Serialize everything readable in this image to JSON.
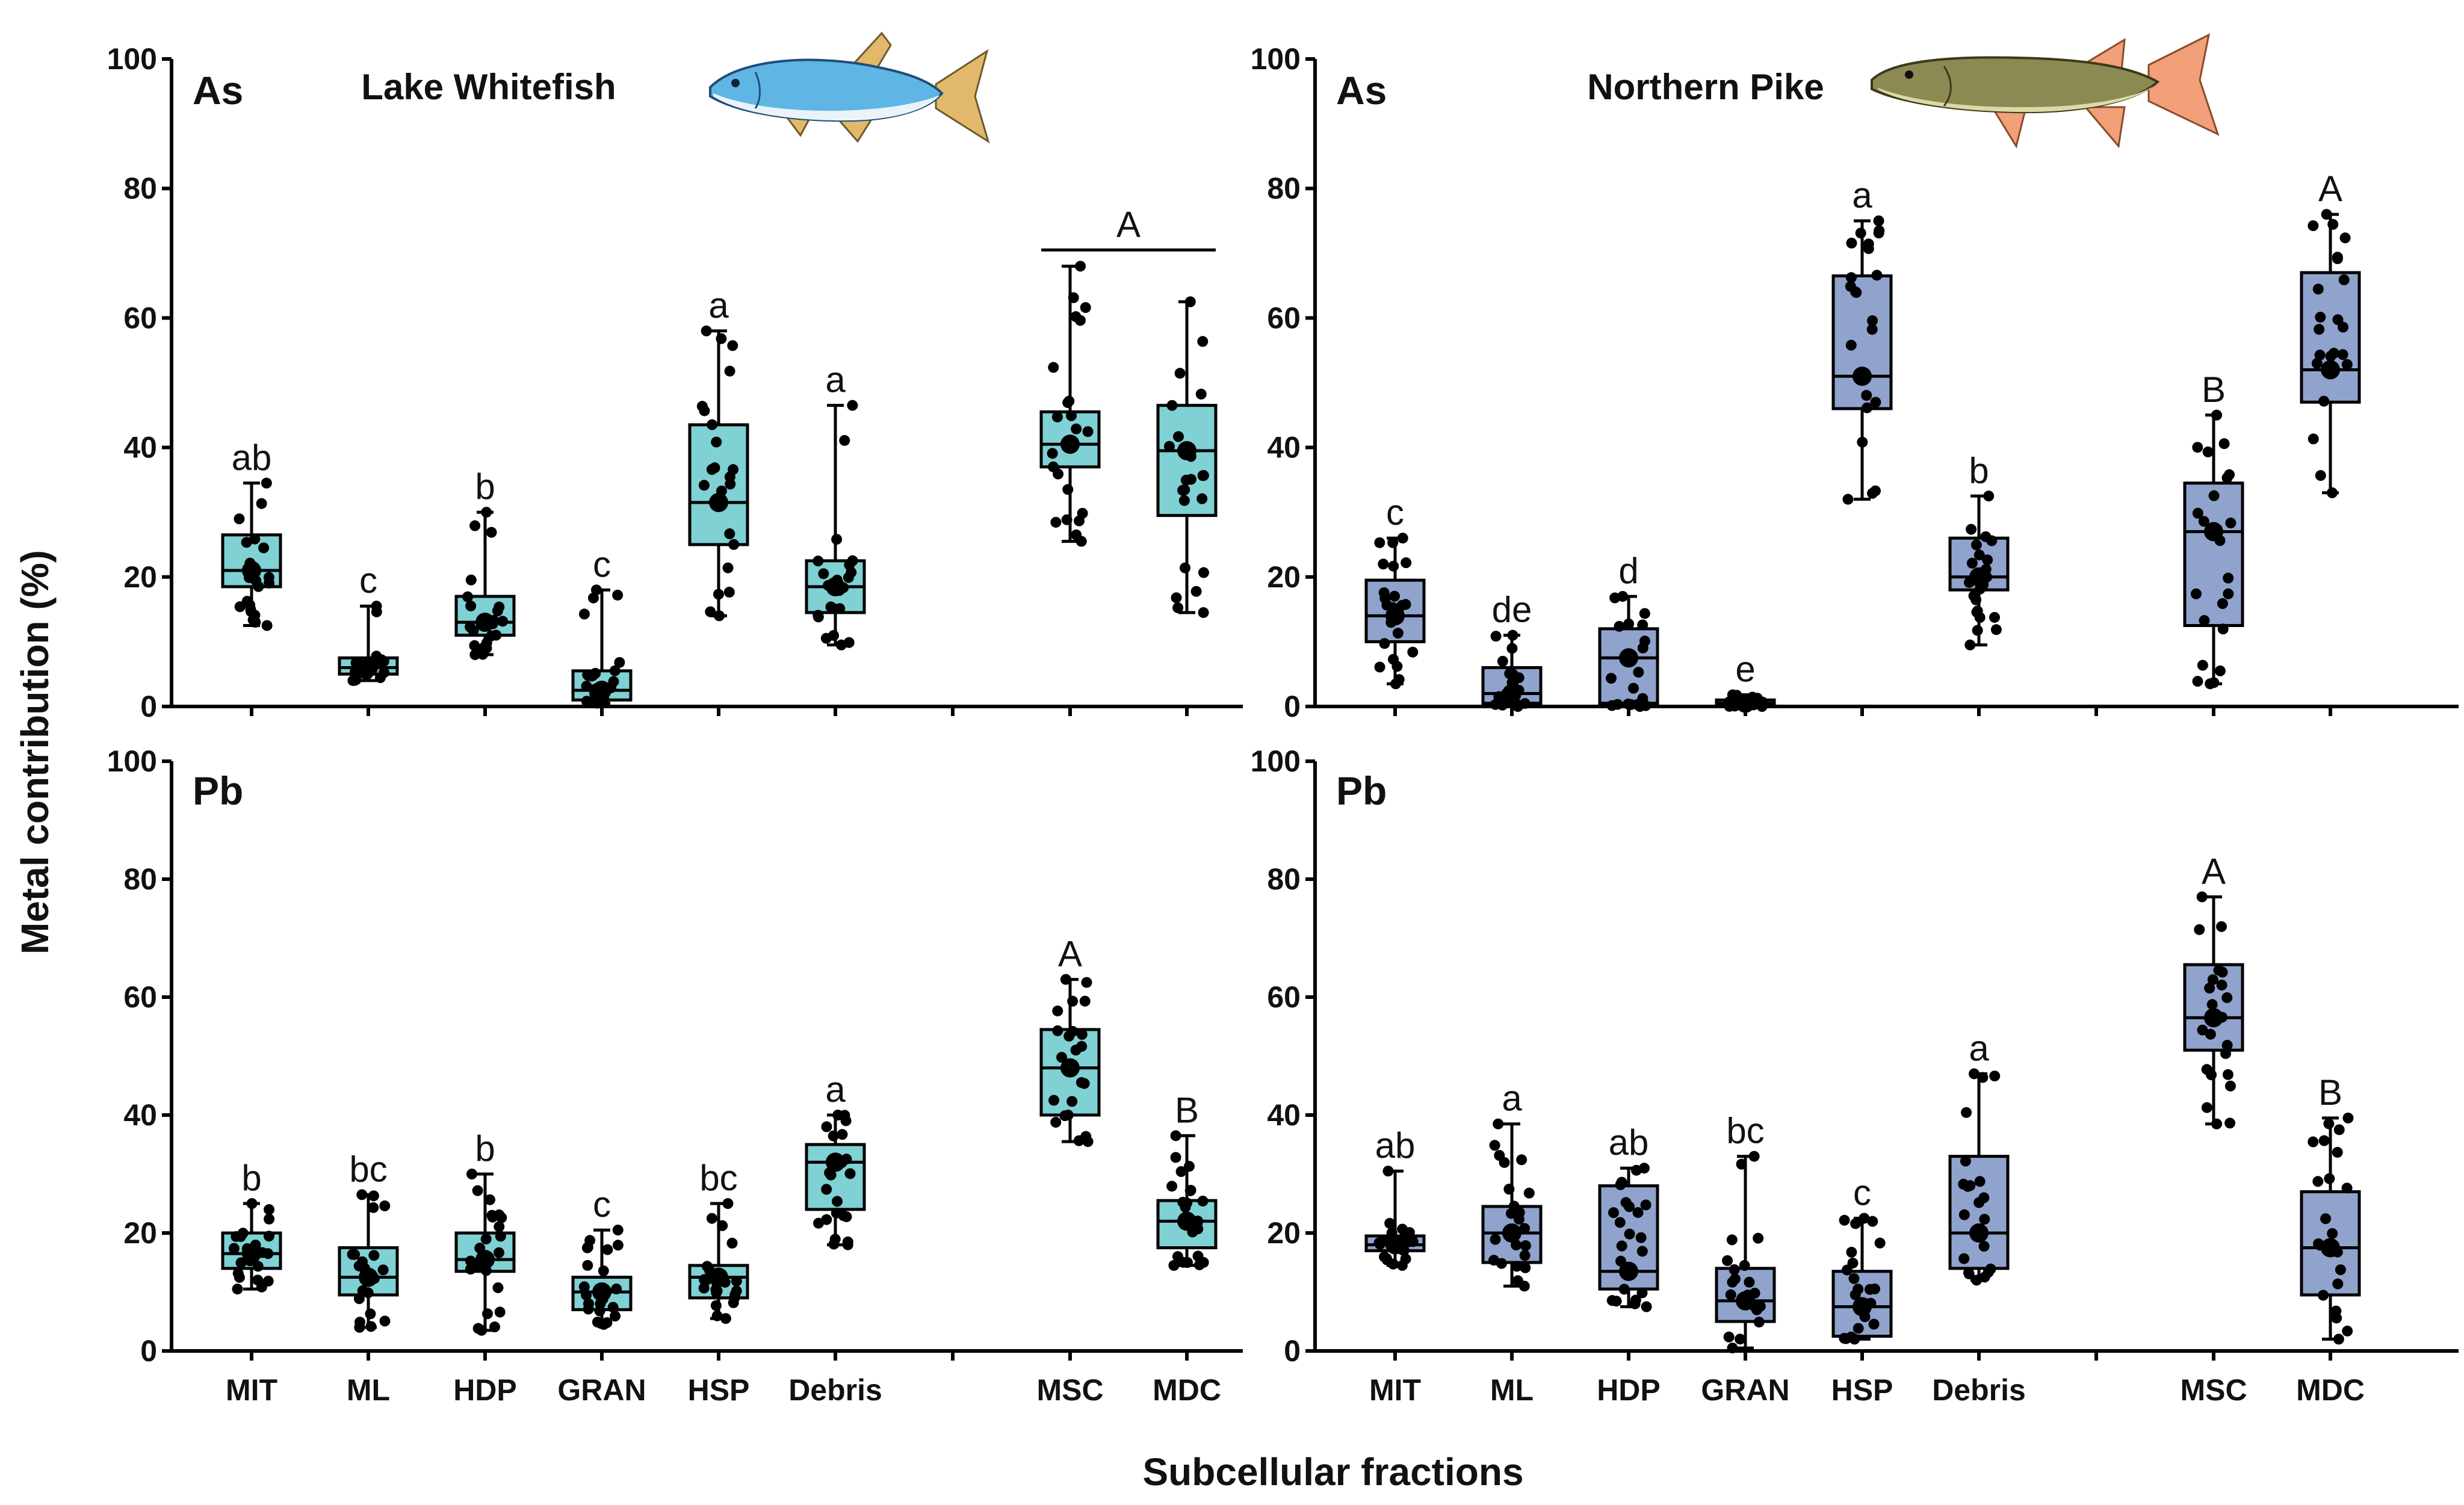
{
  "figure": {
    "ylabel": "Metal contribution  (%)",
    "xlabel": "Subcellular fractions"
  },
  "colors": {
    "whitefish": "#7fd1d4",
    "pike": "#8fa3cd",
    "stroke": "#000000",
    "point": "#000000"
  },
  "icons": {
    "whitefish": "lake-whitefish-illustration",
    "pike": "northern-pike-illustration"
  },
  "chart_data": [
    {
      "type": "box",
      "panel": "whitefish-as",
      "species": "Lake Whitefish",
      "metal": "As",
      "ylim": [
        0,
        100
      ],
      "yticks": [
        0,
        20,
        40,
        60,
        80,
        100
      ],
      "categories": [
        "MIT",
        "ML",
        "HDP",
        "GRAN",
        "HSP",
        "Debris",
        "MSC",
        "MDC"
      ],
      "boxes": [
        {
          "label": "MIT",
          "min": 12.5,
          "q1": 18.5,
          "median": 21.0,
          "q3": 26.5,
          "max": 34.5,
          "mean": 21.0,
          "sig": "ab"
        },
        {
          "label": "ML",
          "min": 4.0,
          "q1": 5.0,
          "median": 6.0,
          "q3": 7.5,
          "max": 15.5,
          "mean": 6.0,
          "sig": "c"
        },
        {
          "label": "HDP",
          "min": 8.0,
          "q1": 11.0,
          "median": 13.0,
          "q3": 17.0,
          "max": 30.0,
          "mean": 13.0,
          "sig": "b"
        },
        {
          "label": "GRAN",
          "min": 0.5,
          "q1": 1.0,
          "median": 2.5,
          "q3": 5.5,
          "max": 18.0,
          "mean": 2.5,
          "sig": "c"
        },
        {
          "label": "HSP",
          "min": 14.0,
          "q1": 25.0,
          "median": 31.5,
          "q3": 43.5,
          "max": 58.0,
          "mean": 31.5,
          "sig": "a"
        },
        {
          "label": "Debris",
          "min": 9.5,
          "q1": 14.5,
          "median": 18.5,
          "q3": 22.5,
          "max": 46.5,
          "mean": 18.5,
          "sig": "a"
        },
        {
          "label": "MSC",
          "min": 25.5,
          "q1": 37.0,
          "median": 40.5,
          "q3": 45.5,
          "max": 68.0,
          "mean": 40.5,
          "sig": ""
        },
        {
          "label": "MDC",
          "min": 14.5,
          "q1": 29.5,
          "median": 39.5,
          "q3": 46.5,
          "max": 62.5,
          "mean": 39.5,
          "sig": ""
        }
      ],
      "group_sig": {
        "label": "A",
        "span": [
          "MSC",
          "MDC"
        ],
        "y": 70.5
      }
    },
    {
      "type": "box",
      "panel": "pike-as",
      "species": "Northern Pike",
      "metal": "As",
      "ylim": [
        0,
        100
      ],
      "yticks": [
        0,
        20,
        40,
        60,
        80,
        100
      ],
      "categories": [
        "MIT",
        "ML",
        "HDP",
        "GRAN",
        "HSP",
        "Debris",
        "MSC",
        "MDC"
      ],
      "boxes": [
        {
          "label": "MIT",
          "min": 3.5,
          "q1": 10.0,
          "median": 14.0,
          "q3": 19.5,
          "max": 26.0,
          "mean": 14.0,
          "sig": "c"
        },
        {
          "label": "ML",
          "min": 0.0,
          "q1": 0.5,
          "median": 2.0,
          "q3": 6.0,
          "max": 11.0,
          "mean": 2.0,
          "sig": "de"
        },
        {
          "label": "HDP",
          "min": 0.0,
          "q1": 0.5,
          "median": 7.5,
          "q3": 12.0,
          "max": 17.0,
          "mean": 7.5,
          "sig": "d"
        },
        {
          "label": "GRAN",
          "min": 0.0,
          "q1": 0.2,
          "median": 0.5,
          "q3": 1.0,
          "max": 1.8,
          "mean": 0.5,
          "sig": "e"
        },
        {
          "label": "HSP",
          "min": 32.0,
          "q1": 46.0,
          "median": 51.0,
          "q3": 66.5,
          "max": 75.0,
          "mean": 51.0,
          "sig": "a"
        },
        {
          "label": "Debris",
          "min": 9.5,
          "q1": 18.0,
          "median": 20.0,
          "q3": 26.0,
          "max": 32.5,
          "mean": 20.0,
          "sig": "b"
        },
        {
          "label": "MSC",
          "min": 3.5,
          "q1": 12.5,
          "median": 27.0,
          "q3": 34.5,
          "max": 45.0,
          "mean": 27.0,
          "sig": "B"
        },
        {
          "label": "MDC",
          "min": 33.0,
          "q1": 47.0,
          "median": 52.0,
          "q3": 67.0,
          "max": 76.0,
          "mean": 52.0,
          "sig": "A"
        }
      ]
    },
    {
      "type": "box",
      "panel": "whitefish-pb",
      "species": "Lake Whitefish",
      "metal": "Pb",
      "ylim": [
        0,
        100
      ],
      "yticks": [
        0,
        20,
        40,
        60,
        80,
        100
      ],
      "categories": [
        "MIT",
        "ML",
        "HDP",
        "GRAN",
        "HSP",
        "Debris",
        "MSC",
        "MDC"
      ],
      "boxes": [
        {
          "label": "MIT",
          "min": 10.5,
          "q1": 14.0,
          "median": 16.5,
          "q3": 20.0,
          "max": 25.0,
          "mean": 16.5,
          "sig": "b"
        },
        {
          "label": "ML",
          "min": 4.0,
          "q1": 9.5,
          "median": 12.5,
          "q3": 17.5,
          "max": 26.5,
          "mean": 12.5,
          "sig": "bc"
        },
        {
          "label": "HDP",
          "min": 3.5,
          "q1": 13.5,
          "median": 15.5,
          "q3": 20.0,
          "max": 30.0,
          "mean": 15.5,
          "sig": "b"
        },
        {
          "label": "GRAN",
          "min": 4.5,
          "q1": 7.0,
          "median": 10.0,
          "q3": 12.5,
          "max": 20.5,
          "mean": 10.0,
          "sig": "c"
        },
        {
          "label": "HSP",
          "min": 5.5,
          "q1": 9.0,
          "median": 12.5,
          "q3": 14.5,
          "max": 25.0,
          "mean": 12.5,
          "sig": "bc"
        },
        {
          "label": "Debris",
          "min": 18.0,
          "q1": 24.0,
          "median": 32.0,
          "q3": 35.0,
          "max": 40.0,
          "mean": 32.0,
          "sig": "a"
        },
        {
          "label": "MSC",
          "min": 35.5,
          "q1": 40.0,
          "median": 48.0,
          "q3": 54.5,
          "max": 63.0,
          "mean": 48.0,
          "sig": "A"
        },
        {
          "label": "MDC",
          "min": 14.5,
          "q1": 17.5,
          "median": 22.0,
          "q3": 25.5,
          "max": 36.5,
          "mean": 22.0,
          "sig": "B"
        }
      ]
    },
    {
      "type": "box",
      "panel": "pike-pb",
      "species": "Northern Pike",
      "metal": "Pb",
      "ylim": [
        0,
        100
      ],
      "yticks": [
        0,
        20,
        40,
        60,
        80,
        100
      ],
      "categories": [
        "MIT",
        "ML",
        "HDP",
        "GRAN",
        "HSP",
        "Debris",
        "MSC",
        "MDC"
      ],
      "boxes": [
        {
          "label": "MIT",
          "min": 14.5,
          "q1": 17.0,
          "median": 18.0,
          "q3": 19.5,
          "max": 30.5,
          "mean": 18.0,
          "sig": "ab"
        },
        {
          "label": "ML",
          "min": 11.0,
          "q1": 15.0,
          "median": 20.0,
          "q3": 24.5,
          "max": 38.5,
          "mean": 20.0,
          "sig": "a"
        },
        {
          "label": "HDP",
          "min": 7.5,
          "q1": 10.5,
          "median": 13.5,
          "q3": 28.0,
          "max": 31.0,
          "mean": 13.5,
          "sig": "ab"
        },
        {
          "label": "GRAN",
          "min": 0.5,
          "q1": 5.0,
          "median": 8.5,
          "q3": 14.0,
          "max": 33.0,
          "mean": 8.5,
          "sig": "bc"
        },
        {
          "label": "HSP",
          "min": 2.0,
          "q1": 2.5,
          "median": 7.5,
          "q3": 13.5,
          "max": 22.5,
          "mean": 7.5,
          "sig": "c"
        },
        {
          "label": "Debris",
          "min": 12.0,
          "q1": 14.0,
          "median": 20.0,
          "q3": 33.0,
          "max": 47.0,
          "mean": 20.0,
          "sig": "a"
        },
        {
          "label": "MSC",
          "min": 38.5,
          "q1": 51.0,
          "median": 56.5,
          "q3": 65.5,
          "max": 77.0,
          "mean": 56.5,
          "sig": "A"
        },
        {
          "label": "MDC",
          "min": 2.0,
          "q1": 9.5,
          "median": 17.5,
          "q3": 27.0,
          "max": 39.5,
          "mean": 17.5,
          "sig": "B"
        }
      ]
    }
  ]
}
